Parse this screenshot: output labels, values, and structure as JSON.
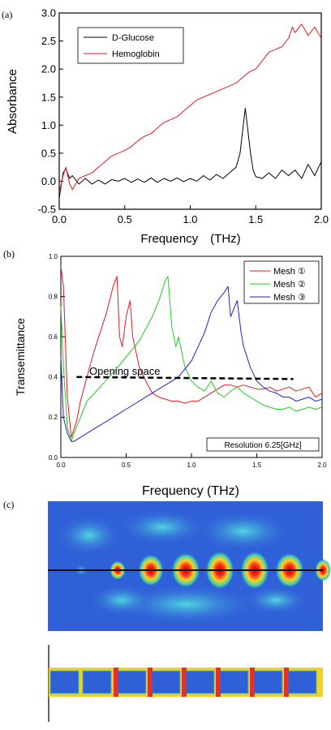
{
  "chart_data": [
    {
      "panel": "(a)",
      "type": "line",
      "xlabel": "Frequency　(THz)",
      "ylabel": "Absorbance",
      "xlim": [
        0.0,
        2.0
      ],
      "ylim": [
        -0.5,
        3.0
      ],
      "xticks": [
        "0.0",
        "0.5",
        "1.0",
        "1.5",
        "2.0"
      ],
      "yticks": [
        "-0.5",
        "0.0",
        "0.5",
        "1.0",
        "1.5",
        "2.0",
        "2.5",
        "3.0"
      ],
      "legend_position": "top-left",
      "series": [
        {
          "name": "D-Glucose",
          "color": "#000000",
          "x": [
            0.0,
            0.03,
            0.05,
            0.08,
            0.1,
            0.15,
            0.2,
            0.25,
            0.3,
            0.35,
            0.4,
            0.45,
            0.5,
            0.55,
            0.6,
            0.65,
            0.7,
            0.75,
            0.8,
            0.85,
            0.9,
            0.95,
            1.0,
            1.05,
            1.1,
            1.15,
            1.2,
            1.25,
            1.3,
            1.35,
            1.38,
            1.4,
            1.42,
            1.44,
            1.46,
            1.48,
            1.5,
            1.55,
            1.6,
            1.65,
            1.7,
            1.75,
            1.8,
            1.85,
            1.9,
            1.95,
            2.0
          ],
          "values": [
            -0.3,
            0.15,
            0.22,
            0.05,
            0.1,
            -0.05,
            0.05,
            -0.05,
            0.02,
            -0.05,
            0.03,
            0.0,
            0.05,
            -0.02,
            0.04,
            -0.02,
            0.06,
            -0.02,
            0.05,
            0.0,
            0.06,
            -0.01,
            0.05,
            0.0,
            0.1,
            0.02,
            0.12,
            0.05,
            0.15,
            0.25,
            0.5,
            0.9,
            1.3,
            0.9,
            0.5,
            0.2,
            0.08,
            0.05,
            0.15,
            0.05,
            0.2,
            0.1,
            0.2,
            0.05,
            0.3,
            0.1,
            0.35
          ]
        },
        {
          "name": "Hemoglobin",
          "color": "#e41a1c",
          "x": [
            0.0,
            0.03,
            0.05,
            0.08,
            0.1,
            0.15,
            0.2,
            0.25,
            0.3,
            0.35,
            0.4,
            0.45,
            0.5,
            0.55,
            0.6,
            0.65,
            0.7,
            0.75,
            0.8,
            0.85,
            0.9,
            0.95,
            1.0,
            1.05,
            1.1,
            1.15,
            1.2,
            1.25,
            1.3,
            1.35,
            1.4,
            1.45,
            1.5,
            1.55,
            1.6,
            1.65,
            1.7,
            1.75,
            1.78,
            1.8,
            1.85,
            1.9,
            1.95,
            2.0
          ],
          "values": [
            -0.2,
            0.1,
            0.25,
            -0.05,
            -0.15,
            0.05,
            0.1,
            0.15,
            0.25,
            0.35,
            0.45,
            0.5,
            0.55,
            0.62,
            0.72,
            0.8,
            0.85,
            0.95,
            1.05,
            1.1,
            1.15,
            1.25,
            1.35,
            1.45,
            1.5,
            1.55,
            1.6,
            1.65,
            1.7,
            1.75,
            1.85,
            1.95,
            2.0,
            2.15,
            2.3,
            2.35,
            2.4,
            2.55,
            2.75,
            2.65,
            2.8,
            2.6,
            2.75,
            2.55
          ]
        }
      ]
    },
    {
      "panel": "(b)",
      "type": "line",
      "xlabel": "Frequency (THz)",
      "ylabel": "Transemittance",
      "xlim": [
        0.0,
        2.0
      ],
      "ylim": [
        0.0,
        1.0
      ],
      "xticks": [
        "0.0",
        "0.5",
        "1.0",
        "1.5",
        "2.0"
      ],
      "yticks": [
        "0.0",
        "0.2",
        "0.4",
        "0.6",
        "0.8",
        "1.0"
      ],
      "legend_position": "top-right",
      "annotation": "Opening space",
      "annotation_line": {
        "x": [
          0.12,
          1.78
        ],
        "y": [
          0.4,
          0.39
        ]
      },
      "resolution_label": "Resolution 6.25[GHz]",
      "series": [
        {
          "name": "Mesh ①",
          "color": "#e41a1c",
          "x": [
            0.0,
            0.02,
            0.05,
            0.08,
            0.12,
            0.15,
            0.2,
            0.25,
            0.3,
            0.35,
            0.4,
            0.43,
            0.45,
            0.47,
            0.5,
            0.53,
            0.55,
            0.6,
            0.65,
            0.7,
            0.75,
            0.8,
            0.85,
            0.9,
            0.95,
            1.0,
            1.05,
            1.1,
            1.15,
            1.2,
            1.25,
            1.3,
            1.35,
            1.4,
            1.45,
            1.5,
            1.55,
            1.6,
            1.65,
            1.7,
            1.75,
            1.8,
            1.85,
            1.9,
            1.95,
            2.0
          ],
          "values": [
            0.95,
            0.85,
            0.3,
            0.1,
            0.18,
            0.28,
            0.4,
            0.52,
            0.62,
            0.72,
            0.85,
            0.9,
            0.6,
            0.55,
            0.7,
            0.78,
            0.6,
            0.45,
            0.38,
            0.32,
            0.3,
            0.29,
            0.28,
            0.28,
            0.27,
            0.28,
            0.28,
            0.3,
            0.32,
            0.34,
            0.36,
            0.36,
            0.35,
            0.36,
            0.35,
            0.34,
            0.34,
            0.35,
            0.33,
            0.34,
            0.35,
            0.33,
            0.34,
            0.35,
            0.3,
            0.32
          ]
        },
        {
          "name": "Mesh ②",
          "color": "#22cc22",
          "x": [
            0.0,
            0.02,
            0.05,
            0.08,
            0.1,
            0.15,
            0.2,
            0.3,
            0.4,
            0.5,
            0.6,
            0.65,
            0.7,
            0.75,
            0.8,
            0.82,
            0.85,
            0.88,
            0.9,
            0.95,
            1.0,
            1.05,
            1.1,
            1.15,
            1.2,
            1.25,
            1.3,
            1.35,
            1.4,
            1.45,
            1.5,
            1.55,
            1.6,
            1.65,
            1.7,
            1.75,
            1.8,
            1.85,
            1.9,
            1.95,
            2.0
          ],
          "values": [
            0.75,
            0.45,
            0.15,
            0.08,
            0.12,
            0.2,
            0.28,
            0.35,
            0.42,
            0.5,
            0.58,
            0.64,
            0.7,
            0.78,
            0.88,
            0.9,
            0.65,
            0.55,
            0.6,
            0.45,
            0.38,
            0.35,
            0.33,
            0.38,
            0.32,
            0.3,
            0.33,
            0.35,
            0.32,
            0.3,
            0.28,
            0.26,
            0.25,
            0.24,
            0.24,
            0.25,
            0.23,
            0.24,
            0.25,
            0.24,
            0.25
          ]
        },
        {
          "name": "Mesh ③",
          "color": "#2222cc",
          "x": [
            0.0,
            0.02,
            0.05,
            0.08,
            0.1,
            0.15,
            0.2,
            0.3,
            0.4,
            0.5,
            0.6,
            0.7,
            0.8,
            0.9,
            1.0,
            1.05,
            1.1,
            1.15,
            1.2,
            1.25,
            1.28,
            1.3,
            1.35,
            1.38,
            1.4,
            1.45,
            1.5,
            1.55,
            1.6,
            1.65,
            1.7,
            1.75,
            1.8,
            1.85,
            1.9,
            1.95,
            2.0
          ],
          "values": [
            0.5,
            0.2,
            0.12,
            0.08,
            0.08,
            0.1,
            0.12,
            0.16,
            0.2,
            0.24,
            0.28,
            0.32,
            0.36,
            0.4,
            0.48,
            0.55,
            0.62,
            0.72,
            0.78,
            0.82,
            0.85,
            0.7,
            0.78,
            0.62,
            0.55,
            0.45,
            0.38,
            0.35,
            0.33,
            0.32,
            0.3,
            0.3,
            0.28,
            0.29,
            0.3,
            0.28,
            0.29
          ]
        }
      ]
    }
  ],
  "panel_c": {
    "label": "(c)",
    "colors": {
      "background": "#3060d8",
      "hot": "#e4302a",
      "warm": "#f4d020",
      "mid": "#40c8a0",
      "line": "#111111"
    }
  }
}
